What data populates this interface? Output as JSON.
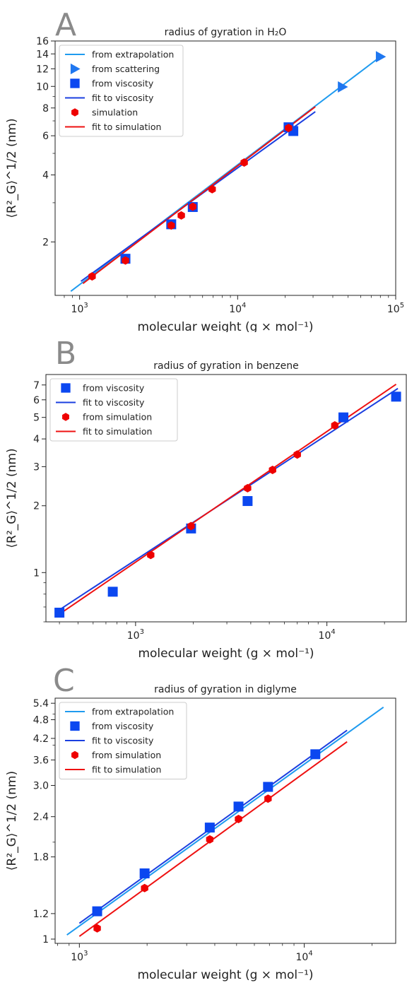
{
  "chart_data": [
    {
      "type": "scatter",
      "panel_letter": "A",
      "title": "radius of gyration in H₂O",
      "xlabel": "molecular weight (g × mol⁻¹)",
      "ylabel": "⟨R²_G⟩^1/2 (nm)",
      "xscale": "log",
      "yscale": "log",
      "xlim": [
        700,
        100000
      ],
      "ylim": [
        1.15,
        16
      ],
      "xticks": [
        {
          "value": 1000,
          "base": "10",
          "exp": "3"
        },
        {
          "value": 10000,
          "base": "10",
          "exp": "4"
        },
        {
          "value": 100000,
          "base": "10",
          "exp": "5"
        }
      ],
      "yticks": [
        {
          "value": 2,
          "label": "2"
        },
        {
          "value": 4,
          "label": "4"
        },
        {
          "value": 6,
          "label": "6"
        },
        {
          "value": 8,
          "label": "8"
        },
        {
          "value": 10,
          "label": "10"
        },
        {
          "value": 12,
          "label": "12"
        },
        {
          "value": 14,
          "label": "14"
        },
        {
          "value": 16,
          "label": "16"
        }
      ],
      "legend_position": "top-left",
      "series": [
        {
          "name": "from extrapolation",
          "kind": "line",
          "color": "#1f9bef",
          "x": [
            880,
            80000
          ],
          "y": [
            1.2,
            13.6
          ]
        },
        {
          "name": "from scattering",
          "kind": "marker",
          "marker": "triangle-right",
          "color": "#1f77f0",
          "x": [
            46000,
            80000
          ],
          "y": [
            9.95,
            13.6
          ]
        },
        {
          "name": "from viscosity",
          "kind": "marker",
          "marker": "square",
          "color": "#0b47f0",
          "x": [
            1950,
            3800,
            5200,
            21000,
            22500
          ],
          "y": [
            1.68,
            2.4,
            2.87,
            6.55,
            6.3
          ]
        },
        {
          "name": "fit to viscosity",
          "kind": "line",
          "color": "#1b3fe0",
          "x": [
            1020,
            31000
          ],
          "y": [
            1.33,
            7.7
          ]
        },
        {
          "name": "simulation",
          "kind": "marker",
          "marker": "hexagon",
          "color": "#ee0000",
          "x": [
            1200,
            1950,
            3800,
            4400,
            5200,
            6900,
            11000,
            21000
          ],
          "y": [
            1.4,
            1.65,
            2.37,
            2.63,
            2.88,
            3.45,
            4.55,
            6.5
          ]
        },
        {
          "name": "fit to simulation",
          "kind": "line",
          "color": "#ee1111",
          "x": [
            1050,
            31000
          ],
          "y": [
            1.3,
            8.1
          ]
        }
      ]
    },
    {
      "type": "scatter",
      "panel_letter": "B",
      "title": "radius of gyration in benzene",
      "xlabel": "molecular weight (g × mol⁻¹)",
      "ylabel": "⟨R²_G⟩^1/2 (nm)",
      "xscale": "log",
      "yscale": "log",
      "xlim": [
        340,
        26000
      ],
      "ylim": [
        0.6,
        7.8
      ],
      "xticks": [
        {
          "value": 1000,
          "base": "10",
          "exp": "3"
        },
        {
          "value": 10000,
          "base": "10",
          "exp": "4"
        }
      ],
      "yticks": [
        {
          "value": 1,
          "label": "1"
        },
        {
          "value": 2,
          "label": "2"
        },
        {
          "value": 3,
          "label": "3"
        },
        {
          "value": 4,
          "label": "4"
        },
        {
          "value": 5,
          "label": "5"
        },
        {
          "value": 6,
          "label": "6"
        },
        {
          "value": 7,
          "label": "7"
        }
      ],
      "legend_position": "top-left",
      "series": [
        {
          "name": "from viscosity",
          "kind": "marker",
          "marker": "square",
          "color": "#0b47f0",
          "x": [
            400,
            760,
            1950,
            3850,
            12200,
            23000
          ],
          "y": [
            0.66,
            0.82,
            1.58,
            2.1,
            5.0,
            6.2
          ]
        },
        {
          "name": "fit to viscosity",
          "kind": "line",
          "color": "#1b3fe0",
          "x": [
            400,
            23500
          ],
          "y": [
            0.68,
            6.75
          ]
        },
        {
          "name": "from simulation",
          "kind": "marker",
          "marker": "hexagon",
          "color": "#ee0000",
          "x": [
            1200,
            1950,
            3850,
            5200,
            7000,
            11000
          ],
          "y": [
            1.2,
            1.62,
            2.4,
            2.9,
            3.4,
            4.6
          ]
        },
        {
          "name": "fit to simulation",
          "kind": "line",
          "color": "#ee1111",
          "x": [
            400,
            23000
          ],
          "y": [
            0.65,
            7.05
          ]
        }
      ]
    },
    {
      "type": "scatter",
      "panel_letter": "C",
      "title": "radius of gyration in diglyme",
      "xlabel": "molecular weight (g × mol⁻¹)",
      "ylabel": "⟨R²_G⟩^1/2 (nm)",
      "xscale": "log",
      "yscale": "log",
      "xlim": [
        780,
        25500
      ],
      "ylim": [
        0.97,
        5.6
      ],
      "xticks": [
        {
          "value": 1000,
          "base": "10",
          "exp": "3"
        },
        {
          "value": 10000,
          "base": "10",
          "exp": "4"
        }
      ],
      "yticks": [
        {
          "value": 1.0,
          "label": "1"
        },
        {
          "value": 1.2,
          "label": "1.2"
        },
        {
          "value": 1.8,
          "label": "1.8"
        },
        {
          "value": 2.4,
          "label": "2.4"
        },
        {
          "value": 3.0,
          "label": "3.0"
        },
        {
          "value": 3.6,
          "label": "3.6"
        },
        {
          "value": 4.2,
          "label": "4.2"
        },
        {
          "value": 4.8,
          "label": "4.8"
        },
        {
          "value": 5.4,
          "label": "5.4"
        }
      ],
      "legend_position": "top-left",
      "series": [
        {
          "name": "from extrapolation",
          "kind": "line",
          "color": "#1f9bef",
          "x": [
            880,
            22500
          ],
          "y": [
            1.03,
            5.25
          ]
        },
        {
          "name": "from viscosity",
          "kind": "marker",
          "marker": "square",
          "color": "#0b47f0",
          "x": [
            1200,
            1950,
            3800,
            5100,
            6900,
            11200
          ],
          "y": [
            1.22,
            1.6,
            2.22,
            2.58,
            2.97,
            3.75
          ]
        },
        {
          "name": "fit to viscosity",
          "kind": "line",
          "color": "#1b3fe0",
          "x": [
            1000,
            15500
          ],
          "y": [
            1.12,
            4.45
          ]
        },
        {
          "name": "from simulation",
          "kind": "marker",
          "marker": "hexagon",
          "color": "#ee0000",
          "x": [
            1200,
            1950,
            3800,
            5100,
            6900
          ],
          "y": [
            1.08,
            1.44,
            2.04,
            2.36,
            2.73
          ]
        },
        {
          "name": "fit to simulation",
          "kind": "line",
          "color": "#ee1111",
          "x": [
            1000,
            15500
          ],
          "y": [
            1.02,
            4.1
          ]
        }
      ]
    }
  ]
}
